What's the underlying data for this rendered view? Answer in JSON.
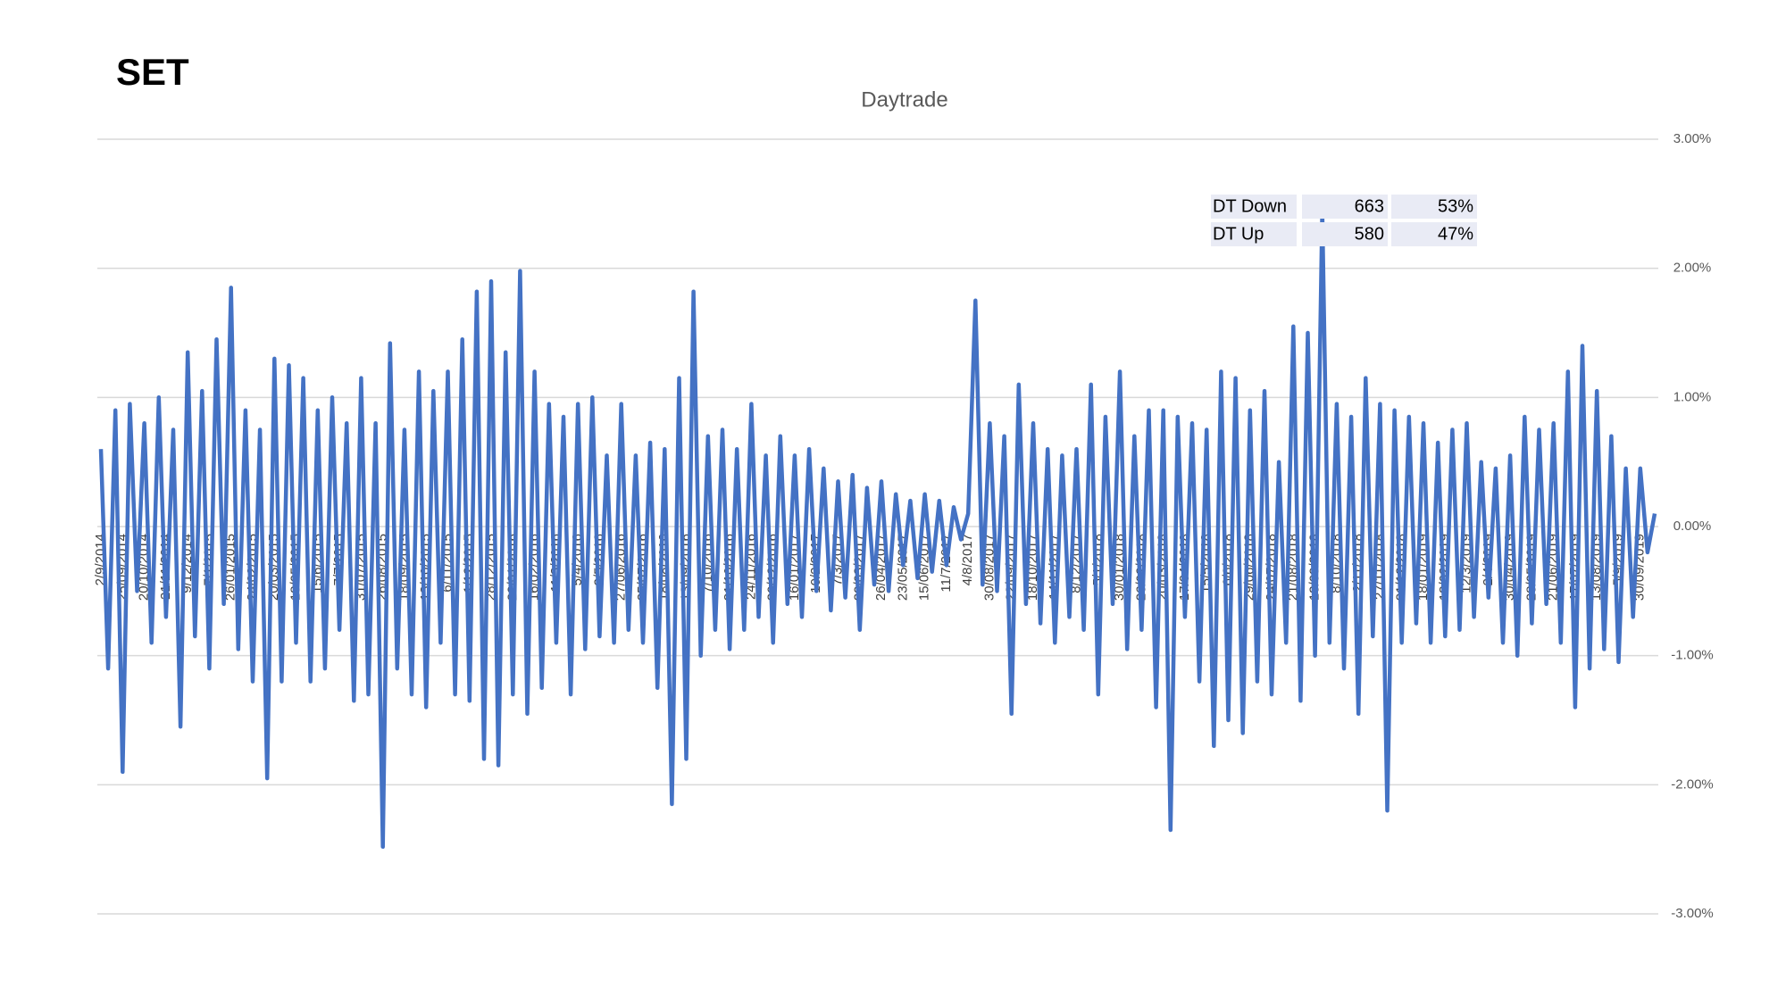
{
  "page_title": "SET",
  "chart_data": {
    "type": "line",
    "title": "Daytrade",
    "categories": [
      "2/9/2014",
      null,
      null,
      "25/09/2014",
      null,
      null,
      "20/10/2014",
      null,
      null,
      "21/11/2014",
      null,
      null,
      "9/12/2014",
      null,
      null,
      "7/1/2015",
      null,
      null,
      "26/01/2015",
      null,
      null,
      "24/02/2015",
      null,
      null,
      "20/03/2015",
      null,
      null,
      "18/05/2015",
      null,
      null,
      "15/6/2015",
      null,
      null,
      "7/7/2015",
      null,
      null,
      "31/07/2015",
      null,
      null,
      "26/08/2015",
      null,
      null,
      "18/09/2015",
      null,
      null,
      "13/10/2015",
      null,
      null,
      "6/11/2015",
      null,
      null,
      "1/12/2015",
      null,
      null,
      "28/12/2015",
      null,
      null,
      "22/01/2016",
      null,
      null,
      "16/02/2016",
      null,
      null,
      "11/3/2016",
      null,
      null,
      "5/4/2016",
      null,
      null,
      "2/5/2016",
      null,
      null,
      "27/06/2016",
      null,
      null,
      "25/07/2016",
      null,
      null,
      "18/08/2016",
      null,
      null,
      "13/09/2016",
      null,
      null,
      "7/10/2016",
      null,
      null,
      "31/10/2016",
      null,
      null,
      "24/11/2016",
      null,
      null,
      "20/12/2016",
      null,
      null,
      "16/01/2017",
      null,
      null,
      "10/2/2017",
      null,
      null,
      "7/3/2017",
      null,
      null,
      "29/03/2017",
      null,
      null,
      "26/04/2017",
      null,
      null,
      "23/05/2017",
      null,
      null,
      "15/06/2017",
      null,
      null,
      "11/7/2017",
      null,
      null,
      "4/8/2017",
      null,
      null,
      "30/08/2017",
      null,
      null,
      "22/09/2017",
      null,
      null,
      "18/10/2017",
      null,
      null,
      "14/11/2017",
      null,
      null,
      "8/12/2017",
      null,
      null,
      "5/1/2018",
      null,
      null,
      "30/01/2018",
      null,
      null,
      "26/02/2018",
      null,
      null,
      "20/03/2018",
      null,
      null,
      "17/04/2018",
      null,
      null,
      "15/5/2018",
      null,
      null,
      "6/6/2018",
      null,
      null,
      "29/06/2018",
      null,
      null,
      "24/07/2018",
      null,
      null,
      "21/08/2018",
      null,
      null,
      "13/09/2018",
      null,
      null,
      "8/10/2018",
      null,
      null,
      "2/11/2018",
      null,
      null,
      "27/11/2018",
      null,
      null,
      "21/12/2018",
      null,
      null,
      "18/01/2019",
      null,
      null,
      "13/02/2019",
      null,
      null,
      "12/3/2019",
      null,
      null,
      "2/4/2019",
      null,
      null,
      "30/04/2019",
      null,
      null,
      "28/05/2019",
      null,
      null,
      "21/06/2019",
      null,
      null,
      "17/07/2019",
      null,
      null,
      "13/08/2019",
      null,
      null,
      "5/9/2019",
      null,
      null,
      "30/09/2019",
      null,
      null
    ],
    "values": [
      0.6,
      -1.1,
      0.9,
      -1.9,
      0.95,
      -0.5,
      0.8,
      -0.9,
      1.0,
      -0.7,
      0.75,
      -1.55,
      1.35,
      -0.85,
      1.05,
      -1.1,
      1.45,
      -0.6,
      1.85,
      -0.95,
      0.9,
      -1.2,
      0.75,
      -1.95,
      1.3,
      -1.2,
      1.25,
      -0.9,
      1.15,
      -1.2,
      0.9,
      -1.1,
      1.0,
      -0.8,
      0.8,
      -1.35,
      1.15,
      -1.3,
      0.8,
      -2.48,
      1.42,
      -1.1,
      0.75,
      -1.3,
      1.2,
      -1.4,
      1.05,
      -0.9,
      1.2,
      -1.3,
      1.45,
      -1.35,
      1.82,
      -1.8,
      1.9,
      -1.85,
      1.35,
      -1.3,
      1.98,
      -1.45,
      1.2,
      -1.25,
      0.95,
      -0.9,
      0.85,
      -1.3,
      0.95,
      -0.95,
      1.0,
      -0.85,
      0.55,
      -0.9,
      0.95,
      -0.8,
      0.55,
      -0.9,
      0.65,
      -1.25,
      0.6,
      -2.15,
      1.15,
      -1.8,
      1.82,
      -1.0,
      0.7,
      -0.8,
      0.75,
      -0.95,
      0.6,
      -0.8,
      0.95,
      -0.7,
      0.55,
      -0.9,
      0.7,
      -0.6,
      0.55,
      -0.7,
      0.6,
      -0.5,
      0.45,
      -0.65,
      0.35,
      -0.55,
      0.4,
      -0.8,
      0.3,
      -0.45,
      0.35,
      -0.5,
      0.25,
      -0.3,
      0.2,
      -0.4,
      0.25,
      -0.35,
      0.2,
      -0.3,
      0.15,
      -0.1,
      0.1,
      1.75,
      -0.45,
      0.8,
      -0.5,
      0.7,
      -1.45,
      1.1,
      -0.6,
      0.8,
      -0.75,
      0.6,
      -0.9,
      0.55,
      -0.7,
      0.6,
      -0.8,
      1.1,
      -1.3,
      0.85,
      -0.6,
      1.2,
      -0.95,
      0.7,
      -0.8,
      0.9,
      -1.4,
      0.9,
      -2.35,
      0.85,
      -0.7,
      0.8,
      -1.2,
      0.75,
      -1.7,
      1.2,
      -1.5,
      1.15,
      -1.6,
      0.9,
      -1.2,
      1.05,
      -1.3,
      0.5,
      -0.9,
      1.55,
      -1.35,
      1.5,
      -1.0,
      2.45,
      -0.9,
      0.95,
      -1.1,
      0.85,
      -1.45,
      1.15,
      -0.85,
      0.95,
      -2.2,
      0.9,
      -0.9,
      0.85,
      -0.75,
      0.8,
      -0.9,
      0.65,
      -0.85,
      0.75,
      -0.8,
      0.8,
      -0.7,
      0.5,
      -0.55,
      0.45,
      -0.9,
      0.55,
      -1.0,
      0.85,
      -0.75,
      0.75,
      -0.6,
      0.8,
      -0.9,
      1.2,
      -1.4,
      1.4,
      -1.1,
      1.05,
      -0.95,
      0.7,
      -1.05,
      0.45,
      -0.7,
      0.45,
      -0.2,
      0.1
    ],
    "color": "#4472c4",
    "ylim": [
      -3,
      3
    ],
    "yticks": [
      {
        "value": -3,
        "label": "-3.00%"
      },
      {
        "value": -2,
        "label": "-2.00%"
      },
      {
        "value": -1,
        "label": "-1.00%"
      },
      {
        "value": 0,
        "label": "0.00%"
      },
      {
        "value": 1,
        "label": "1.00%"
      },
      {
        "value": 2,
        "label": "2.00%"
      },
      {
        "value": 3,
        "label": "3.00%"
      }
    ],
    "grid": true,
    "table": {
      "rows": [
        [
          "DT Down",
          "663",
          "53%"
        ],
        [
          "DT Up",
          "580",
          "47%"
        ]
      ]
    }
  }
}
